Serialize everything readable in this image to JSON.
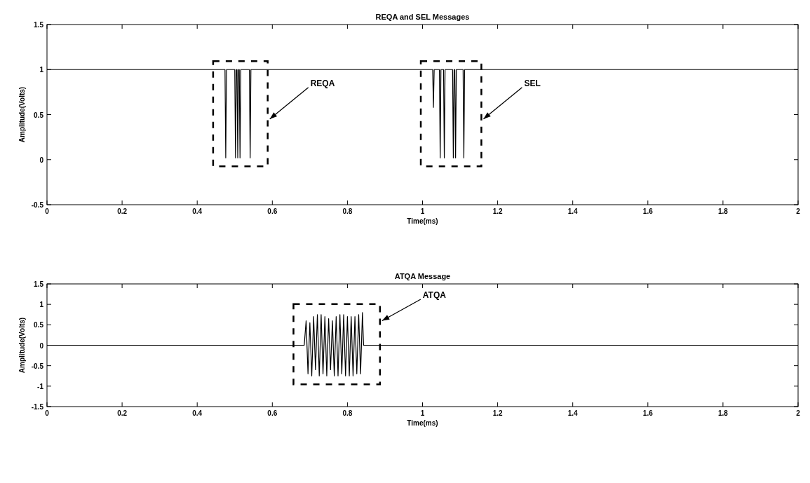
{
  "chart_data": [
    {
      "type": "line",
      "title": "REQA and SEL Messages",
      "xlabel": "Time(ms)",
      "ylabel": "Amplitude(Volts)",
      "xlim": [
        0,
        2
      ],
      "xticks": [
        0,
        0.2,
        0.4,
        0.6,
        0.8,
        1,
        1.2,
        1.4,
        1.6,
        1.8,
        2
      ],
      "ylim": [
        -0.5,
        1.5
      ],
      "yticks": [
        -0.5,
        0,
        0.5,
        1,
        1.5
      ],
      "grid": false,
      "series": [
        {
          "color": "#000000",
          "x": [
            0,
            0.474,
            0.476,
            0.478,
            0.5,
            0.502,
            0.504,
            0.506,
            0.508,
            0.51,
            0.512,
            0.514,
            0.516,
            0.539,
            0.541,
            0.543,
            1.027,
            1.029,
            1.031,
            1.045,
            1.047,
            1.049,
            1.056,
            1.058,
            1.06,
            1.08,
            1.082,
            1.084,
            1.086,
            1.088,
            1.09,
            1.108,
            1.11,
            1.112,
            2
          ],
          "values": [
            1,
            1,
            0.02,
            1,
            1,
            0.02,
            1,
            1,
            0.02,
            1,
            1,
            0.02,
            1,
            1,
            0.02,
            1,
            1,
            0.58,
            1,
            1,
            0.02,
            1,
            1,
            0.02,
            1,
            1,
            0.02,
            1,
            1,
            0.02,
            1,
            1,
            0.02,
            1,
            1
          ]
        }
      ],
      "annotations": [
        "REQA",
        "SEL"
      ]
    },
    {
      "type": "line",
      "title": "ATQA Message",
      "xlabel": "Time(ms)",
      "ylabel": "Amplitude(Volts)",
      "xlim": [
        0,
        2
      ],
      "xticks": [
        0,
        0.2,
        0.4,
        0.6,
        0.8,
        1,
        1.2,
        1.4,
        1.6,
        1.8,
        2
      ],
      "ylim": [
        -1.5,
        1.5
      ],
      "yticks": [
        -1.5,
        -1,
        -0.5,
        0,
        0.5,
        1,
        1.5
      ],
      "grid": false,
      "series": [
        {
          "color": "#000000",
          "x": [
            0,
            0.685,
            0.69,
            0.695,
            0.7,
            0.705,
            0.71,
            0.715,
            0.72,
            0.725,
            0.73,
            0.735,
            0.74,
            0.745,
            0.75,
            0.755,
            0.76,
            0.765,
            0.77,
            0.775,
            0.78,
            0.785,
            0.79,
            0.795,
            0.8,
            0.805,
            0.81,
            0.815,
            0.82,
            0.825,
            0.83,
            0.835,
            0.84,
            0.843,
            2
          ],
          "values": [
            0,
            0,
            0.6,
            -0.7,
            0.55,
            -0.75,
            0.7,
            -0.6,
            0.75,
            -0.75,
            0.75,
            -0.7,
            0.7,
            -0.75,
            0.65,
            -0.6,
            0.6,
            -0.75,
            0.7,
            -0.75,
            0.75,
            -0.7,
            0.75,
            -0.75,
            0.7,
            -0.75,
            0.7,
            -0.75,
            0.7,
            -0.7,
            0.75,
            -0.7,
            0.8,
            0,
            0
          ]
        }
      ],
      "annotations": [
        "ATQA"
      ]
    }
  ]
}
